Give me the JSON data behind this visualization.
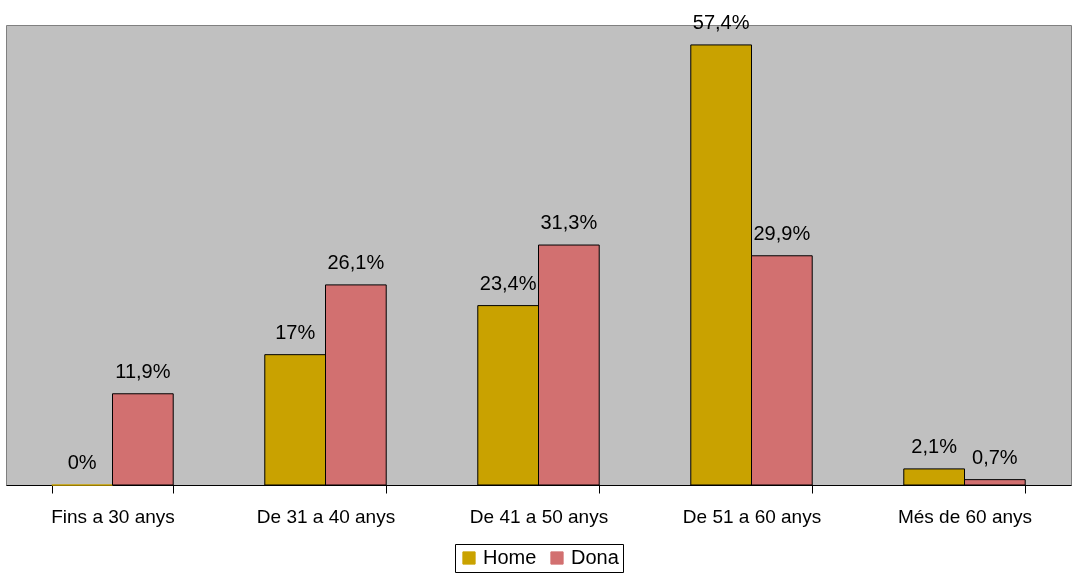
{
  "chart_data": {
    "type": "bar",
    "categories": [
      "Fins a 30 anys",
      "De 31 a 40 anys",
      "De 41 a 50 anys",
      "De 51 a 60 anys",
      "Més de 60 anys"
    ],
    "series": [
      {
        "name": "Home",
        "color": "#c9a200",
        "values": [
          0,
          17,
          23.4,
          57.4,
          2.1
        ],
        "value_labels": [
          "0%",
          "17%",
          "23,4%",
          "57,4%",
          "2,1%"
        ]
      },
      {
        "name": "Dona",
        "color": "#d27070",
        "values": [
          11.9,
          26.1,
          31.3,
          29.9,
          0.7
        ],
        "value_labels": [
          "11,9%",
          "26,1%",
          "31,3%",
          "29,9%",
          "0,7%"
        ]
      }
    ],
    "grid": false,
    "legend": "bottom"
  }
}
